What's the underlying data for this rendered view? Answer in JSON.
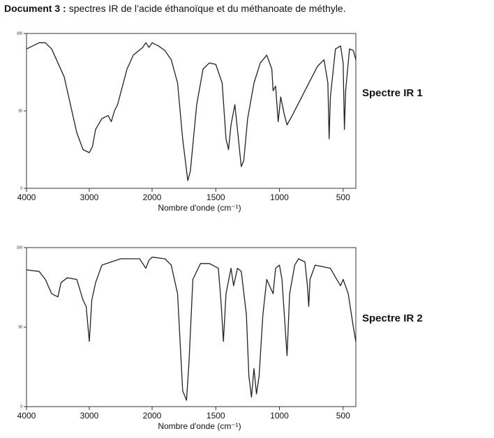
{
  "heading": {
    "label": "Document 3 :",
    "text": "spectres IR de l’acide éthanoïque et du méthanoate de méthyle."
  },
  "chart_data": [
    {
      "type": "line",
      "name": "Spectre IR 1",
      "x_label": "Nombre d'onde (cm⁻¹)",
      "xlim": [
        4000,
        400
      ],
      "xbreak": 2000,
      "xticks": [
        4000,
        3000,
        2000,
        1500,
        1000,
        500
      ],
      "ylim": [
        0,
        100
      ],
      "yticks": [
        0,
        50,
        100
      ],
      "color": "#222222",
      "x": [
        4000,
        3800,
        3700,
        3600,
        3400,
        3200,
        3100,
        3000,
        2950,
        2900,
        2800,
        2700,
        2650,
        2600,
        2550,
        2400,
        2300,
        2150,
        2100,
        2050,
        2000,
        1950,
        1900,
        1850,
        1800,
        1760,
        1720,
        1700,
        1650,
        1600,
        1550,
        1500,
        1450,
        1420,
        1400,
        1380,
        1350,
        1300,
        1280,
        1250,
        1200,
        1150,
        1100,
        1060,
        1050,
        1030,
        1010,
        990,
        960,
        940,
        900,
        800,
        700,
        650,
        620,
        610,
        600,
        560,
        520,
        500,
        490,
        480,
        450,
        420,
        400
      ],
      "values": [
        90,
        94,
        94,
        90,
        72,
        36,
        25,
        23,
        27,
        38,
        45,
        47,
        43,
        50,
        54,
        77,
        86,
        91,
        94,
        91,
        94,
        92,
        89,
        83,
        68,
        32,
        5,
        11,
        54,
        77,
        81,
        80,
        68,
        32,
        25,
        41,
        54,
        14,
        18,
        45,
        68,
        81,
        86,
        77,
        63,
        66,
        43,
        59,
        47,
        41,
        47,
        63,
        79,
        83,
        68,
        32,
        59,
        90,
        92,
        81,
        38,
        63,
        90,
        89,
        83
      ]
    },
    {
      "type": "line",
      "name": "Spectre IR 2",
      "x_label": "Nombre d'onde (cm⁻¹)",
      "xlim": [
        4000,
        400
      ],
      "xbreak": 2000,
      "xticks": [
        4000,
        3000,
        2000,
        1500,
        1000,
        500
      ],
      "ylim": [
        0,
        100
      ],
      "yticks": [
        0,
        50,
        100
      ],
      "color": "#222222",
      "x": [
        4000,
        3800,
        3700,
        3600,
        3500,
        3450,
        3350,
        3200,
        3100,
        3050,
        3000,
        2960,
        2900,
        2800,
        2500,
        2200,
        2100,
        2050,
        2000,
        1900,
        1850,
        1800,
        1760,
        1730,
        1710,
        1680,
        1620,
        1550,
        1480,
        1460,
        1440,
        1420,
        1380,
        1360,
        1330,
        1300,
        1260,
        1240,
        1220,
        1200,
        1180,
        1160,
        1130,
        1100,
        1050,
        1030,
        1000,
        980,
        940,
        920,
        880,
        850,
        800,
        780,
        770,
        760,
        720,
        600,
        550,
        520,
        500,
        460,
        420,
        400
      ],
      "values": [
        86,
        85,
        80,
        71,
        69,
        78,
        81,
        80,
        67,
        63,
        41,
        67,
        78,
        89,
        93,
        93,
        87,
        92,
        94,
        93,
        89,
        71,
        10,
        4,
        28,
        80,
        90,
        90,
        87,
        67,
        41,
        71,
        87,
        76,
        87,
        85,
        58,
        19,
        6,
        24,
        8,
        19,
        58,
        80,
        71,
        87,
        89,
        80,
        32,
        71,
        89,
        93,
        91,
        76,
        63,
        80,
        89,
        87,
        80,
        76,
        80,
        71,
        50,
        41
      ]
    }
  ]
}
